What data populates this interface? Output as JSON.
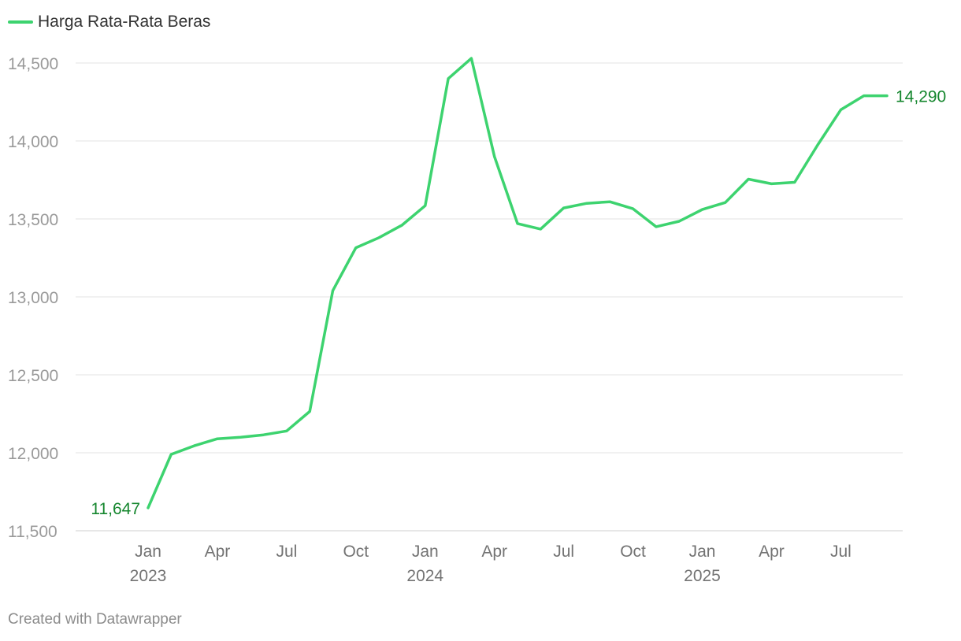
{
  "legend": {
    "label": "Harga Rata-Rata Beras",
    "color": "#3dd36f"
  },
  "footer": {
    "text": "Created with Datawrapper"
  },
  "colors": {
    "line": "#3dd36f",
    "value_label": "#14862d",
    "grid": "#e3e3e3",
    "axis_text": "#9a9a9a",
    "x_text": "#737373"
  },
  "chart_data": {
    "type": "line",
    "title": "",
    "xlabel": "",
    "ylabel": "",
    "ylim": [
      11500,
      14500
    ],
    "yticks": [
      11500,
      12000,
      12500,
      13000,
      13500,
      14000,
      14500
    ],
    "ytick_labels": [
      "11,500",
      "12,000",
      "12,500",
      "13,000",
      "13,500",
      "14,000",
      "14,500"
    ],
    "grid": true,
    "legend_position": "top-left",
    "xticks": [
      {
        "date": "2023-01",
        "label": "Jan",
        "year": "2023"
      },
      {
        "date": "2023-04",
        "label": "Apr",
        "year": ""
      },
      {
        "date": "2023-07",
        "label": "Jul",
        "year": ""
      },
      {
        "date": "2023-10",
        "label": "Oct",
        "year": ""
      },
      {
        "date": "2024-01",
        "label": "Jan",
        "year": "2024"
      },
      {
        "date": "2024-04",
        "label": "Apr",
        "year": ""
      },
      {
        "date": "2024-07",
        "label": "Jul",
        "year": ""
      },
      {
        "date": "2024-10",
        "label": "Oct",
        "year": ""
      },
      {
        "date": "2025-01",
        "label": "Jan",
        "year": "2025"
      },
      {
        "date": "2025-04",
        "label": "Apr",
        "year": ""
      },
      {
        "date": "2025-07",
        "label": "Jul",
        "year": ""
      }
    ],
    "series": [
      {
        "name": "Harga Rata-Rata Beras",
        "points": [
          {
            "x": "2023-01",
            "y": 11647
          },
          {
            "x": "2023-02",
            "y": 11990
          },
          {
            "x": "2023-03",
            "y": 12045
          },
          {
            "x": "2023-04",
            "y": 12090
          },
          {
            "x": "2023-05",
            "y": 12100
          },
          {
            "x": "2023-06",
            "y": 12115
          },
          {
            "x": "2023-07",
            "y": 12140
          },
          {
            "x": "2023-08",
            "y": 12265
          },
          {
            "x": "2023-09",
            "y": 13040
          },
          {
            "x": "2023-10",
            "y": 13315
          },
          {
            "x": "2023-11",
            "y": 13380
          },
          {
            "x": "2023-12",
            "y": 13460
          },
          {
            "x": "2024-01",
            "y": 13585
          },
          {
            "x": "2024-02",
            "y": 14400
          },
          {
            "x": "2024-03",
            "y": 14530
          },
          {
            "x": "2024-04",
            "y": 13900
          },
          {
            "x": "2024-05",
            "y": 13470
          },
          {
            "x": "2024-06",
            "y": 13435
          },
          {
            "x": "2024-07",
            "y": 13570
          },
          {
            "x": "2024-08",
            "y": 13600
          },
          {
            "x": "2024-09",
            "y": 13610
          },
          {
            "x": "2024-10",
            "y": 13565
          },
          {
            "x": "2024-11",
            "y": 13450
          },
          {
            "x": "2024-12",
            "y": 13485
          },
          {
            "x": "2025-01",
            "y": 13560
          },
          {
            "x": "2025-02",
            "y": 13605
          },
          {
            "x": "2025-03",
            "y": 13755
          },
          {
            "x": "2025-04",
            "y": 13725
          },
          {
            "x": "2025-05",
            "y": 13735
          },
          {
            "x": "2025-06",
            "y": 13975
          },
          {
            "x": "2025-07",
            "y": 14200
          },
          {
            "x": "2025-08",
            "y": 14290
          },
          {
            "x": "2025-09",
            "y": 14290
          }
        ]
      }
    ],
    "annotations": [
      {
        "x": "2023-01",
        "y": 11647,
        "text": "11,647",
        "side": "left"
      },
      {
        "x": "2025-09",
        "y": 14290,
        "text": "14,290",
        "side": "right"
      }
    ]
  }
}
